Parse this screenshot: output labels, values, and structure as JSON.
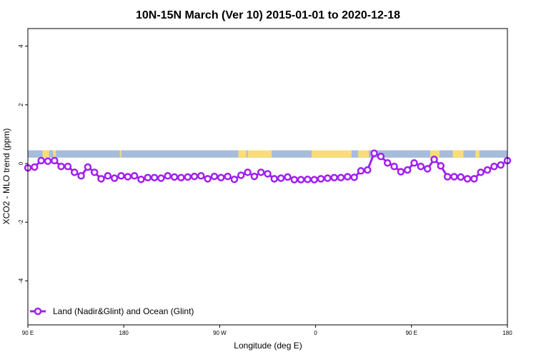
{
  "chart_data": {
    "type": "line",
    "title": "10N-15N March (Ver 10)   2015-01-01 to 2020-12-18",
    "xlabel": "Longitude (deg E)",
    "ylabel": "XCO2 - MLO trend (ppm)",
    "xlim": [
      90,
      450
    ],
    "ylim": [
      -5.5,
      4.6
    ],
    "x_ticks": [
      {
        "value": 90,
        "label": "90 E"
      },
      {
        "value": 162,
        "label": "180"
      },
      {
        "value": 234,
        "label": "90 W"
      },
      {
        "value": 306,
        "label": "0"
      },
      {
        "value": 378,
        "label": "90 E"
      },
      {
        "value": 450,
        "label": "180"
      }
    ],
    "y_ticks": [
      -4,
      -2,
      0,
      2,
      4
    ],
    "grid": false,
    "legend": {
      "position": "bottom-left",
      "marker": "circle-line"
    },
    "series": [
      {
        "name": "Land (Nadir&Glint) and Ocean (Glint)",
        "color": "#a020f0",
        "x": [
          90,
          95,
          100,
          105,
          110,
          115,
          120,
          125,
          130,
          135,
          140,
          145,
          150,
          155,
          160,
          165,
          170,
          175,
          180,
          185,
          190,
          195,
          200,
          205,
          210,
          215,
          220,
          225,
          230,
          235,
          240,
          245,
          250,
          255,
          260,
          265,
          270,
          275,
          280,
          285,
          290,
          295,
          300,
          305,
          310,
          315,
          320,
          325,
          330,
          335,
          340,
          345,
          350,
          355,
          360,
          365,
          370,
          375,
          380,
          385,
          390,
          395,
          400,
          405,
          410,
          415,
          420,
          425,
          430,
          435,
          440,
          445,
          450
        ],
        "y": [
          -0.15,
          -0.12,
          0.1,
          0.08,
          0.1,
          -0.1,
          -0.1,
          -0.3,
          -0.42,
          -0.12,
          -0.3,
          -0.52,
          -0.42,
          -0.5,
          -0.42,
          -0.45,
          -0.42,
          -0.54,
          -0.48,
          -0.48,
          -0.5,
          -0.42,
          -0.46,
          -0.48,
          -0.46,
          -0.44,
          -0.42,
          -0.52,
          -0.44,
          -0.48,
          -0.44,
          -0.54,
          -0.4,
          -0.3,
          -0.44,
          -0.3,
          -0.35,
          -0.52,
          -0.5,
          -0.46,
          -0.55,
          -0.55,
          -0.54,
          -0.55,
          -0.52,
          -0.5,
          -0.48,
          -0.48,
          -0.45,
          -0.47,
          -0.25,
          -0.22,
          0.35,
          0.24,
          0.02,
          -0.1,
          -0.28,
          -0.22,
          0.02,
          -0.1,
          -0.18,
          0.14,
          -0.08,
          -0.45,
          -0.45,
          -0.46,
          -0.52,
          -0.52,
          -0.3,
          -0.22,
          -0.1,
          -0.05,
          0.1
        ]
      }
    ],
    "reference_band": {
      "y_range": [
        0.2,
        0.45
      ],
      "ocean_color": "#a6bcdc",
      "land_color": "#fadc78"
    }
  }
}
